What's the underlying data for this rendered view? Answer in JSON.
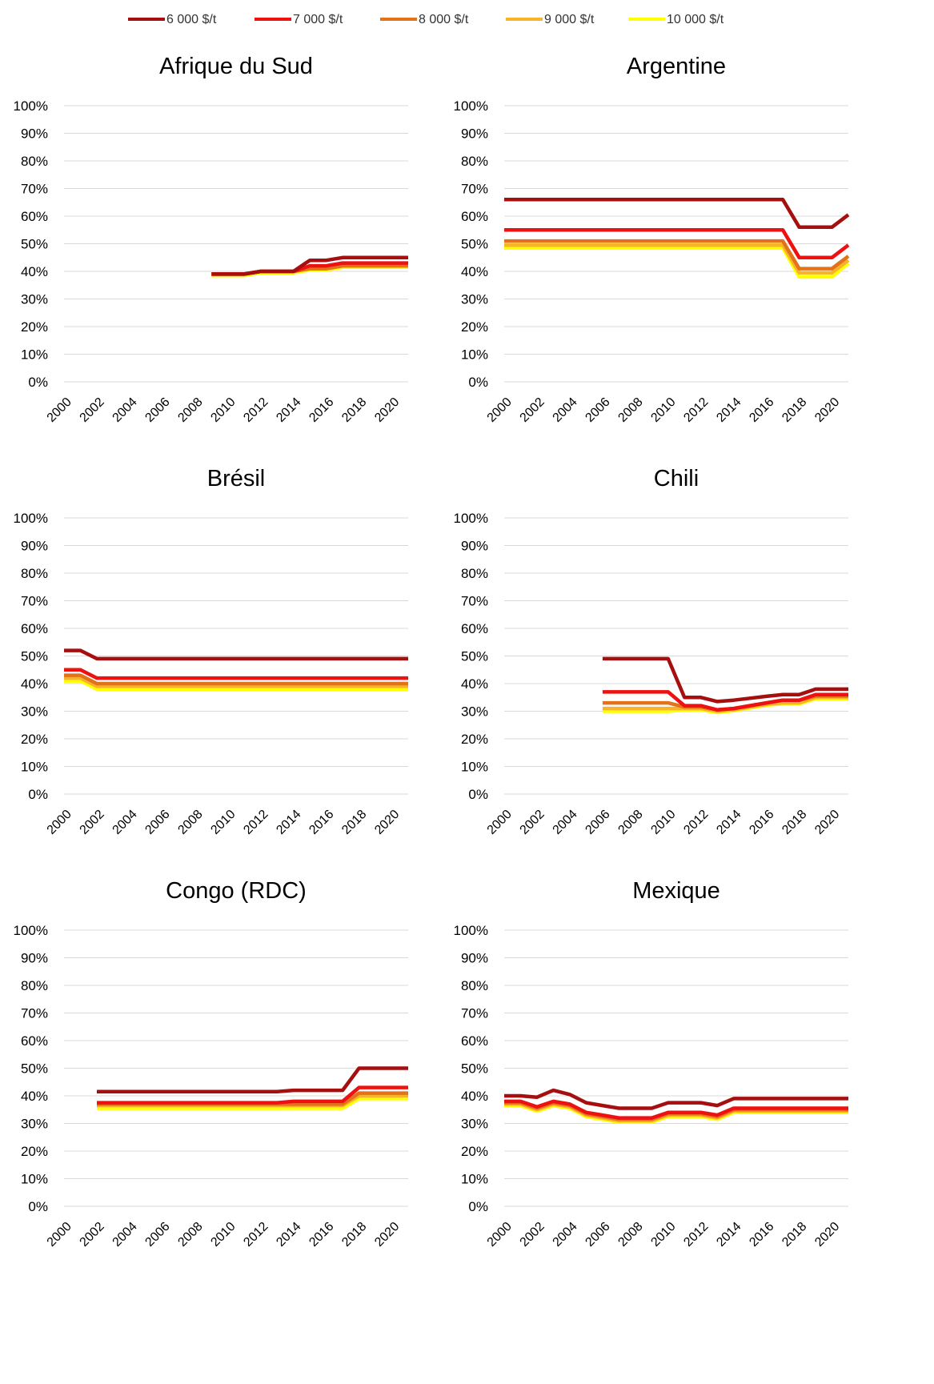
{
  "legend": [
    {
      "name": "6 000 $/t",
      "color": "#A50F0F"
    },
    {
      "name": "7 000 $/t",
      "color": "#EE1111"
    },
    {
      "name": "8 000 $/t",
      "color": "#E2731B"
    },
    {
      "name": "9 000 $/t",
      "color": "#F7B32B"
    },
    {
      "name": "10 000 $/t",
      "color": "#FFFF00"
    }
  ],
  "chart_data": [
    {
      "type": "line",
      "title": "Afrique du Sud",
      "x": [
        2009,
        2010,
        2011,
        2012,
        2013,
        2014,
        2015,
        2016,
        2017,
        2018,
        2019,
        2020,
        2021
      ],
      "xticks": [
        "2000",
        "2002",
        "2004",
        "2006",
        "2008",
        "2010",
        "2012",
        "2014",
        "2016",
        "2018",
        "2020"
      ],
      "yticks": [
        "0%",
        "10%",
        "20%",
        "30%",
        "40%",
        "50%",
        "60%",
        "70%",
        "80%",
        "90%",
        "100%"
      ],
      "ylim": [
        0,
        100
      ],
      "series": [
        {
          "name": "6 000 $/t",
          "values": [
            39,
            39,
            39,
            40,
            40,
            40,
            44,
            44,
            45,
            45,
            45,
            45,
            45
          ]
        },
        {
          "name": "7 000 $/t",
          "values": [
            39,
            39,
            39,
            40,
            40,
            40,
            42,
            42,
            43,
            43,
            43,
            43,
            43
          ]
        },
        {
          "name": "8 000 $/t",
          "values": [
            39,
            39,
            39,
            40,
            40,
            40,
            41,
            41,
            42,
            42,
            42,
            42,
            42
          ]
        },
        {
          "name": "9 000 $/t",
          "values": [
            39,
            39,
            39,
            40,
            40,
            40,
            41,
            41,
            42,
            42,
            42,
            42,
            42
          ]
        },
        {
          "name": "10 000 $/t",
          "values": [
            38.5,
            38.5,
            38.5,
            39.5,
            39.5,
            39.5,
            40.5,
            40.5,
            41.5,
            41.5,
            41.5,
            41.5,
            41.5
          ]
        }
      ]
    },
    {
      "type": "line",
      "title": "Argentine",
      "x": [
        2000,
        2001,
        2002,
        2003,
        2004,
        2005,
        2006,
        2007,
        2008,
        2009,
        2010,
        2011,
        2012,
        2013,
        2014,
        2015,
        2016,
        2017,
        2018,
        2019,
        2020,
        2021
      ],
      "xticks": [
        "2000",
        "2002",
        "2004",
        "2006",
        "2008",
        "2010",
        "2012",
        "2014",
        "2016",
        "2018",
        "2020"
      ],
      "yticks": [
        "0%",
        "10%",
        "20%",
        "30%",
        "40%",
        "50%",
        "60%",
        "70%",
        "80%",
        "90%",
        "100%"
      ],
      "ylim": [
        0,
        100
      ],
      "series": [
        {
          "name": "6 000 $/t",
          "values": [
            66,
            66,
            66,
            66,
            66,
            66,
            66,
            66,
            66,
            66,
            66,
            66,
            66,
            66,
            66,
            66,
            66,
            66,
            56,
            56,
            56,
            60.5
          ]
        },
        {
          "name": "7 000 $/t",
          "values": [
            55,
            55,
            55,
            55,
            55,
            55,
            55,
            55,
            55,
            55,
            55,
            55,
            55,
            55,
            55,
            55,
            55,
            55,
            45,
            45,
            45,
            49.5
          ]
        },
        {
          "name": "8 000 $/t",
          "values": [
            51,
            51,
            51,
            51,
            51,
            51,
            51,
            51,
            51,
            51,
            51,
            51,
            51,
            51,
            51,
            51,
            51,
            51,
            41,
            41,
            41,
            45.5
          ]
        },
        {
          "name": "9 000 $/t",
          "values": [
            49.5,
            49.5,
            49.5,
            49.5,
            49.5,
            49.5,
            49.5,
            49.5,
            49.5,
            49.5,
            49.5,
            49.5,
            49.5,
            49.5,
            49.5,
            49.5,
            49.5,
            49.5,
            39.5,
            39.5,
            39.5,
            44
          ]
        },
        {
          "name": "10 000 $/t",
          "values": [
            48.5,
            48.5,
            48.5,
            48.5,
            48.5,
            48.5,
            48.5,
            48.5,
            48.5,
            48.5,
            48.5,
            48.5,
            48.5,
            48.5,
            48.5,
            48.5,
            48.5,
            48.5,
            38,
            38,
            38,
            43
          ]
        }
      ]
    },
    {
      "type": "line",
      "title": "Brésil",
      "x": [
        2000,
        2001,
        2002,
        2003,
        2004,
        2005,
        2006,
        2007,
        2008,
        2009,
        2010,
        2011,
        2012,
        2013,
        2014,
        2015,
        2016,
        2017,
        2018,
        2019,
        2020,
        2021
      ],
      "xticks": [
        "2000",
        "2002",
        "2004",
        "2006",
        "2008",
        "2010",
        "2012",
        "2014",
        "2016",
        "2018",
        "2020"
      ],
      "yticks": [
        "0%",
        "10%",
        "20%",
        "30%",
        "40%",
        "50%",
        "60%",
        "70%",
        "80%",
        "90%",
        "100%"
      ],
      "ylim": [
        0,
        100
      ],
      "series": [
        {
          "name": "6 000 $/t",
          "values": [
            52,
            52,
            49,
            49,
            49,
            49,
            49,
            49,
            49,
            49,
            49,
            49,
            49,
            49,
            49,
            49,
            49,
            49,
            49,
            49,
            49,
            49
          ]
        },
        {
          "name": "7 000 $/t",
          "values": [
            45,
            45,
            42,
            42,
            42,
            42,
            42,
            42,
            42,
            42,
            42,
            42,
            42,
            42,
            42,
            42,
            42,
            42,
            42,
            42,
            42,
            42
          ]
        },
        {
          "name": "8 000 $/t",
          "values": [
            43,
            43,
            40,
            40,
            40,
            40,
            40,
            40,
            40,
            40,
            40,
            40,
            40,
            40,
            40,
            40,
            40,
            40,
            40,
            40,
            40,
            40
          ]
        },
        {
          "name": "9 000 $/t",
          "values": [
            42,
            42,
            39,
            39,
            39,
            39,
            39,
            39,
            39,
            39,
            39,
            39,
            39,
            39,
            39,
            39,
            39,
            39,
            39,
            39,
            39,
            39
          ]
        },
        {
          "name": "10 000 $/t",
          "values": [
            41,
            41,
            38,
            38,
            38,
            38,
            38,
            38,
            38,
            38,
            38,
            38,
            38,
            38,
            38,
            38,
            38,
            38,
            38,
            38,
            38,
            38
          ]
        }
      ]
    },
    {
      "type": "line",
      "title": "Chili",
      "x": [
        2006,
        2007,
        2008,
        2009,
        2010,
        2011,
        2012,
        2013,
        2014,
        2015,
        2016,
        2017,
        2018,
        2019,
        2020,
        2021
      ],
      "xticks": [
        "2000",
        "2002",
        "2004",
        "2006",
        "2008",
        "2010",
        "2012",
        "2014",
        "2016",
        "2018",
        "2020"
      ],
      "yticks": [
        "0%",
        "10%",
        "20%",
        "30%",
        "40%",
        "50%",
        "60%",
        "70%",
        "80%",
        "90%",
        "100%"
      ],
      "ylim": [
        0,
        100
      ],
      "series": [
        {
          "name": "6 000 $/t",
          "values": [
            49,
            49,
            49,
            49,
            49,
            35,
            35,
            33.5,
            34,
            34.7,
            35.4,
            36,
            36,
            38,
            38,
            38
          ]
        },
        {
          "name": "7 000 $/t",
          "values": [
            37,
            37,
            37,
            37,
            37,
            32,
            32,
            30.5,
            31,
            32,
            33,
            34,
            34,
            36,
            36,
            36
          ]
        },
        {
          "name": "8 000 $/t",
          "values": [
            33,
            33,
            33,
            33,
            33,
            31.5,
            31.5,
            30.5,
            31,
            32,
            33,
            34,
            34,
            35.5,
            35.5,
            35.5
          ]
        },
        {
          "name": "9 000 $/t",
          "values": [
            31,
            31,
            31,
            31,
            31,
            31,
            31,
            30,
            30.5,
            31.5,
            32.5,
            33,
            33,
            35,
            35,
            35
          ]
        },
        {
          "name": "10 000 $/t",
          "values": [
            30,
            30,
            30,
            30,
            30,
            30.5,
            30.5,
            29.5,
            30.2,
            31.2,
            32.2,
            32.7,
            32.7,
            34.5,
            34.5,
            34.5
          ]
        }
      ]
    },
    {
      "type": "line",
      "title": "Congo (RDC)",
      "x": [
        2002,
        2003,
        2004,
        2005,
        2006,
        2007,
        2008,
        2009,
        2010,
        2011,
        2012,
        2013,
        2014,
        2015,
        2016,
        2017,
        2018,
        2019,
        2020,
        2021
      ],
      "xticks": [
        "2000",
        "2002",
        "2004",
        "2006",
        "2008",
        "2010",
        "2012",
        "2014",
        "2016",
        "2018",
        "2020"
      ],
      "yticks": [
        "0%",
        "10%",
        "20%",
        "30%",
        "40%",
        "50%",
        "60%",
        "70%",
        "80%",
        "90%",
        "100%"
      ],
      "ylim": [
        0,
        100
      ],
      "series": [
        {
          "name": "6 000 $/t",
          "values": [
            41.5,
            41.5,
            41.5,
            41.5,
            41.5,
            41.5,
            41.5,
            41.5,
            41.5,
            41.5,
            41.5,
            41.5,
            42,
            42,
            42,
            42,
            50,
            50,
            50,
            50
          ]
        },
        {
          "name": "7 000 $/t",
          "values": [
            37.5,
            37.5,
            37.5,
            37.5,
            37.5,
            37.5,
            37.5,
            37.5,
            37.5,
            37.5,
            37.5,
            37.5,
            38,
            38,
            38,
            38,
            43,
            43,
            43,
            43
          ]
        },
        {
          "name": "8 000 $/t",
          "values": [
            37,
            37,
            37,
            37,
            37,
            37,
            37,
            37,
            37,
            37,
            37,
            37,
            37,
            37,
            37,
            37,
            41,
            41,
            41,
            41
          ]
        },
        {
          "name": "9 000 $/t",
          "values": [
            36.5,
            36.5,
            36.5,
            36.5,
            36.5,
            36.5,
            36.5,
            36.5,
            36.5,
            36.5,
            36.5,
            36.5,
            36.5,
            36.5,
            36.5,
            36.5,
            40,
            40,
            40,
            40
          ]
        },
        {
          "name": "10 000 $/t",
          "values": [
            35.5,
            35.5,
            35.5,
            35.5,
            35.5,
            35.5,
            35.5,
            35.5,
            35.5,
            35.5,
            35.5,
            35.5,
            35.5,
            35.5,
            35.5,
            35.5,
            39,
            39,
            39,
            39
          ]
        }
      ]
    },
    {
      "type": "line",
      "title": "Mexique",
      "x": [
        2000,
        2001,
        2002,
        2003,
        2004,
        2005,
        2006,
        2007,
        2008,
        2009,
        2010,
        2011,
        2012,
        2013,
        2014,
        2015,
        2016,
        2017,
        2018,
        2019,
        2020,
        2021
      ],
      "xticks": [
        "2000",
        "2002",
        "2004",
        "2006",
        "2008",
        "2010",
        "2012",
        "2014",
        "2016",
        "2018",
        "2020"
      ],
      "yticks": [
        "0%",
        "10%",
        "20%",
        "30%",
        "40%",
        "50%",
        "60%",
        "70%",
        "80%",
        "90%",
        "100%"
      ],
      "ylim": [
        0,
        100
      ],
      "series": [
        {
          "name": "6 000 $/t",
          "values": [
            40,
            40,
            39.5,
            42,
            40.5,
            37.5,
            36.5,
            35.5,
            35.5,
            35.5,
            37.5,
            37.5,
            37.5,
            36.5,
            39,
            39,
            39,
            39,
            39,
            39,
            39,
            39
          ]
        },
        {
          "name": "7 000 $/t",
          "values": [
            38,
            38,
            36,
            38,
            37,
            34,
            33,
            32,
            32,
            32,
            34,
            34,
            34,
            33,
            35.5,
            35.5,
            35.5,
            35.5,
            35.5,
            35.5,
            35.5,
            35.5
          ]
        },
        {
          "name": "8 000 $/t",
          "values": [
            37.5,
            37.5,
            35.5,
            37.5,
            36.5,
            33.5,
            32.5,
            31.5,
            31.5,
            31.5,
            33.5,
            33.5,
            33.5,
            32.5,
            35,
            35,
            35,
            35,
            35,
            35,
            35,
            35
          ]
        },
        {
          "name": "9 000 $/t",
          "values": [
            37,
            37,
            35,
            37,
            36,
            33,
            32,
            31,
            31,
            31,
            33,
            33,
            33,
            32,
            34.5,
            34.5,
            34.5,
            34.5,
            34.5,
            34.5,
            34.5,
            34.5
          ]
        },
        {
          "name": "10 000 $/t",
          "values": [
            36.5,
            36.5,
            34.5,
            36.5,
            35.5,
            32.5,
            31.5,
            30.5,
            30.5,
            30.5,
            32.5,
            32.5,
            32.5,
            31.5,
            34,
            34,
            34,
            34,
            34,
            34,
            34,
            34
          ]
        }
      ]
    }
  ]
}
